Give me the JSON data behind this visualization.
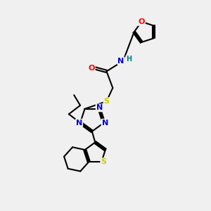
{
  "bg_color": "#f0f0f0",
  "atom_colors": {
    "C": "#000000",
    "N": "#0000cc",
    "O": "#ff0000",
    "S": "#cccc00",
    "H": "#008080"
  },
  "bond_color": "#000000",
  "bond_width": 1.5
}
